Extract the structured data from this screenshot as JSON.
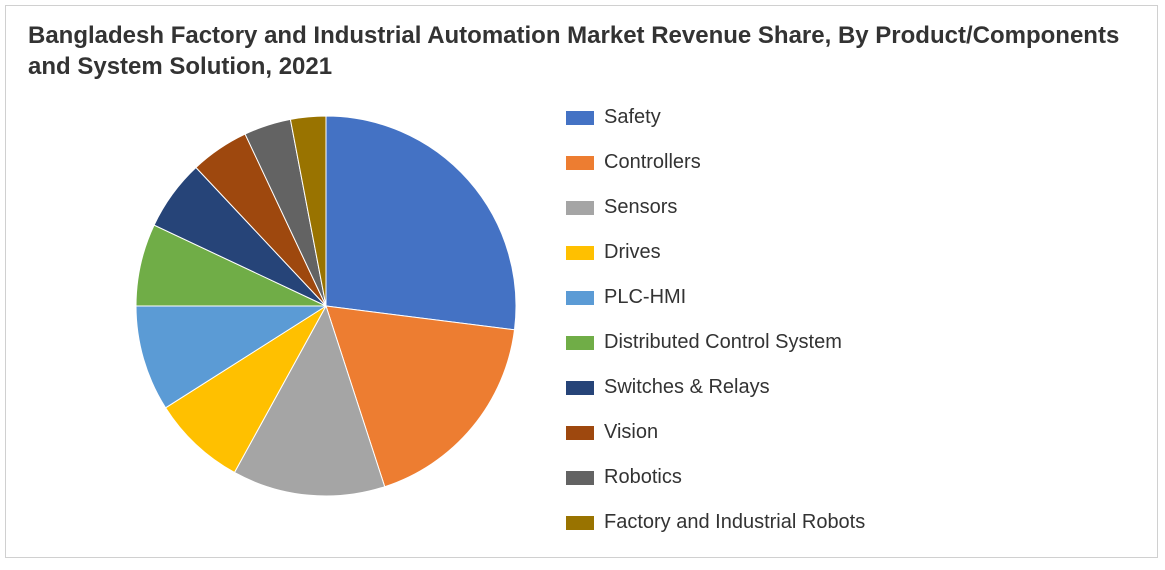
{
  "chart": {
    "type": "pie",
    "title": "Bangladesh Factory and Industrial Automation Market Revenue Share, By Product/Components and System Solution, 2021",
    "title_fontsize": 24,
    "title_fontweight": 700,
    "title_color": "#333333",
    "background_color": "#ffffff",
    "border_color": "#d0d0d0",
    "pie_radius": 190,
    "pie_start_angle_deg": -90,
    "pie_direction": "clockwise",
    "legend_fontsize": 20,
    "legend_swatch_width": 28,
    "legend_swatch_height": 14,
    "legend_gap": 22,
    "slices": [
      {
        "label": "Safety",
        "value": 27,
        "color": "#4472c4"
      },
      {
        "label": "Controllers",
        "value": 18,
        "color": "#ed7d31"
      },
      {
        "label": "Sensors",
        "value": 13,
        "color": "#a5a5a5"
      },
      {
        "label": "Drives",
        "value": 8,
        "color": "#ffc000"
      },
      {
        "label": "PLC-HMI",
        "value": 9,
        "color": "#5b9bd5"
      },
      {
        "label": "Distributed Control System",
        "value": 7,
        "color": "#70ad47"
      },
      {
        "label": "Switches & Relays",
        "value": 6,
        "color": "#264478"
      },
      {
        "label": "Vision",
        "value": 5,
        "color": "#9e480e"
      },
      {
        "label": "Robotics",
        "value": 4,
        "color": "#636363"
      },
      {
        "label": "Factory and Industrial Robots",
        "value": 3,
        "color": "#997300"
      }
    ]
  }
}
